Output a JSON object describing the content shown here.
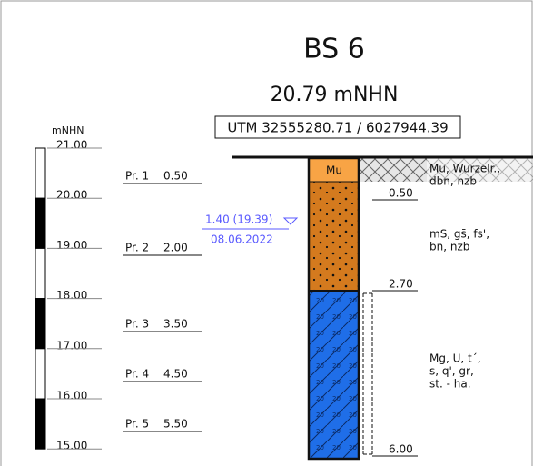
{
  "header": {
    "title": "BS 6",
    "elevation": "20.79 mNHN",
    "utm": "UTM 32555280.71 / 6027944.39"
  },
  "axis": {
    "unit": "mNHN",
    "ticks": [
      "21.00",
      "20.00",
      "19.00",
      "18.00",
      "17.00",
      "16.00",
      "15.00"
    ]
  },
  "samples": [
    {
      "name": "Pr. 1",
      "depth": "0.50"
    },
    {
      "name": "Pr. 2",
      "depth": "2.00"
    },
    {
      "name": "Pr. 3",
      "depth": "3.50"
    },
    {
      "name": "Pr. 4",
      "depth": "4.50"
    },
    {
      "name": "Pr. 5",
      "depth": "5.50"
    }
  ],
  "water_level": {
    "depth": "1.40 (19.39)",
    "date": "08.06.2022"
  },
  "layers": [
    {
      "code": "Mu",
      "description": [
        "Mu, Wurzelr.,",
        "dbn, nzb"
      ],
      "bottom": "0.50"
    },
    {
      "description": [
        "mS, gs̄, fs',",
        "bn, nzb"
      ],
      "bottom": "2.70"
    },
    {
      "description": [
        "Mg, U, t´,",
        "s, q', gr,",
        "st. - ha."
      ],
      "bottom": "6.00"
    }
  ]
}
